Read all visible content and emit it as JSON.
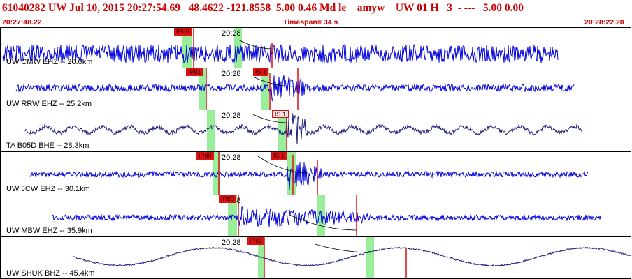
{
  "header": {
    "title": "61040282 UW Jul 10, 2015 20:27:54.69   48.4622 -121.8558  5.00 0.46 Md le    amyw    UW 01 H   3  - ---   5.00 0.00",
    "start_time": "20:27:48.22",
    "timespan": "Timespan=  34 s",
    "end_time": "20:28:22.20"
  },
  "colors": {
    "header_text": "#cc0000",
    "trace_blue": "#0000dd",
    "trace_navy": "#1a1a7a",
    "pick_red": "#dd1111",
    "window_green": "#99ee99",
    "curve": "#000000"
  },
  "time_marker_label": "20:28",
  "channels": [
    {
      "label": "UW CMW EHZ -- 20.0km",
      "color": "blue",
      "p_pick": {
        "text": "IPd0",
        "style": "red"
      },
      "s_pick": null
    },
    {
      "label": "UW RRW EHZ -- 25.2km",
      "color": "blue",
      "p_pick": {
        "text": "IPd1",
        "style": "red"
      },
      "s_pick": {
        "text": "IS 1",
        "style": "red"
      }
    },
    {
      "label": "TA B05D BHE -- 28.3km",
      "color": "navy",
      "p_pick": null,
      "s_pick": {
        "text": "IS 1",
        "style": "pink"
      }
    },
    {
      "label": "UW JCW EHZ -- 30.1km",
      "color": "blue",
      "p_pick": {
        "text": "IPd0",
        "style": "red"
      },
      "s_pick": {
        "text": "IS 1",
        "style": "red"
      }
    },
    {
      "label": "UW MBW EHZ -- 35.9km",
      "color": "blue",
      "p_pick": {
        "text": "IPd0",
        "style": "red"
      },
      "s_pick": null
    },
    {
      "label": "UW SHUK BHZ -- 45.4km",
      "color": "navy",
      "p_pick": {
        "text": "IPc1",
        "style": "red"
      },
      "s_pick": null
    }
  ]
}
